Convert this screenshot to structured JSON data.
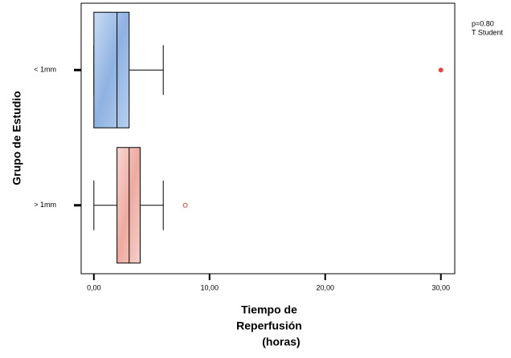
{
  "chart_data": {
    "type": "box",
    "orientation": "horizontal",
    "categories": [
      "< 1mm",
      "> 1mm"
    ],
    "min": [
      0,
      0
    ],
    "q1": [
      0,
      2.0
    ],
    "median": [
      2.0,
      3.05
    ],
    "q3": [
      3.05,
      4.0
    ],
    "max": [
      6.0,
      6.0
    ],
    "outliers": [
      [
        30
      ],
      [
        7.9
      ]
    ],
    "colors": [
      "#a9c6ec",
      "#f5c6bf"
    ],
    "outlier_color": "#e8463a",
    "xlim": [
      -1.1,
      31.2
    ],
    "xticks": [
      {
        "value": 0,
        "label": "0,00"
      },
      {
        "value": 10,
        "label": "10,00"
      },
      {
        "value": 20,
        "label": "20,00"
      },
      {
        "value": 30,
        "label": "30,00"
      }
    ],
    "xlabel": [
      "Tiempo de",
      "Reperfusión",
      "(horas)"
    ],
    "ylabel": "Grupo de Estudio",
    "annotation": [
      "p=0.80",
      "T Student"
    ]
  }
}
